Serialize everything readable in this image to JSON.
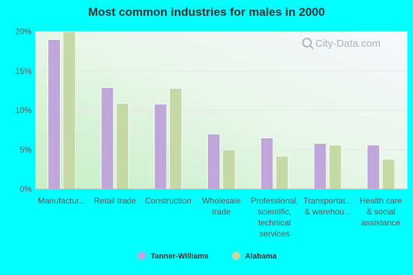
{
  "chart_data": {
    "type": "bar",
    "title": "Most common industries for males in 2000",
    "categories": [
      [
        "Manufactur..."
      ],
      [
        "Retail trade"
      ],
      [
        "Construction"
      ],
      [
        "Wholesale",
        "trade"
      ],
      [
        "Professional,",
        "scientific,",
        "technical",
        "services"
      ],
      [
        "Transportat...",
        "& warehou..."
      ],
      [
        "Health care",
        "& social",
        "assistance"
      ]
    ],
    "series": [
      {
        "name": "Tanner-Williams",
        "color": "#c0a7d9",
        "values": [
          19.0,
          12.9,
          10.8,
          7.0,
          6.5,
          5.8,
          5.6
        ]
      },
      {
        "name": "Alabama",
        "color": "#c4d9a6",
        "values": [
          20.1,
          10.9,
          12.8,
          5.0,
          4.2,
          5.6,
          3.8
        ]
      }
    ],
    "ylim": [
      0,
      20
    ],
    "yticks": [
      "0%",
      "5%",
      "10%",
      "15%",
      "20%"
    ],
    "ytick_values": [
      0,
      5,
      10,
      15,
      20
    ],
    "legend_position": "bottom",
    "watermark": "City-Data.com"
  }
}
